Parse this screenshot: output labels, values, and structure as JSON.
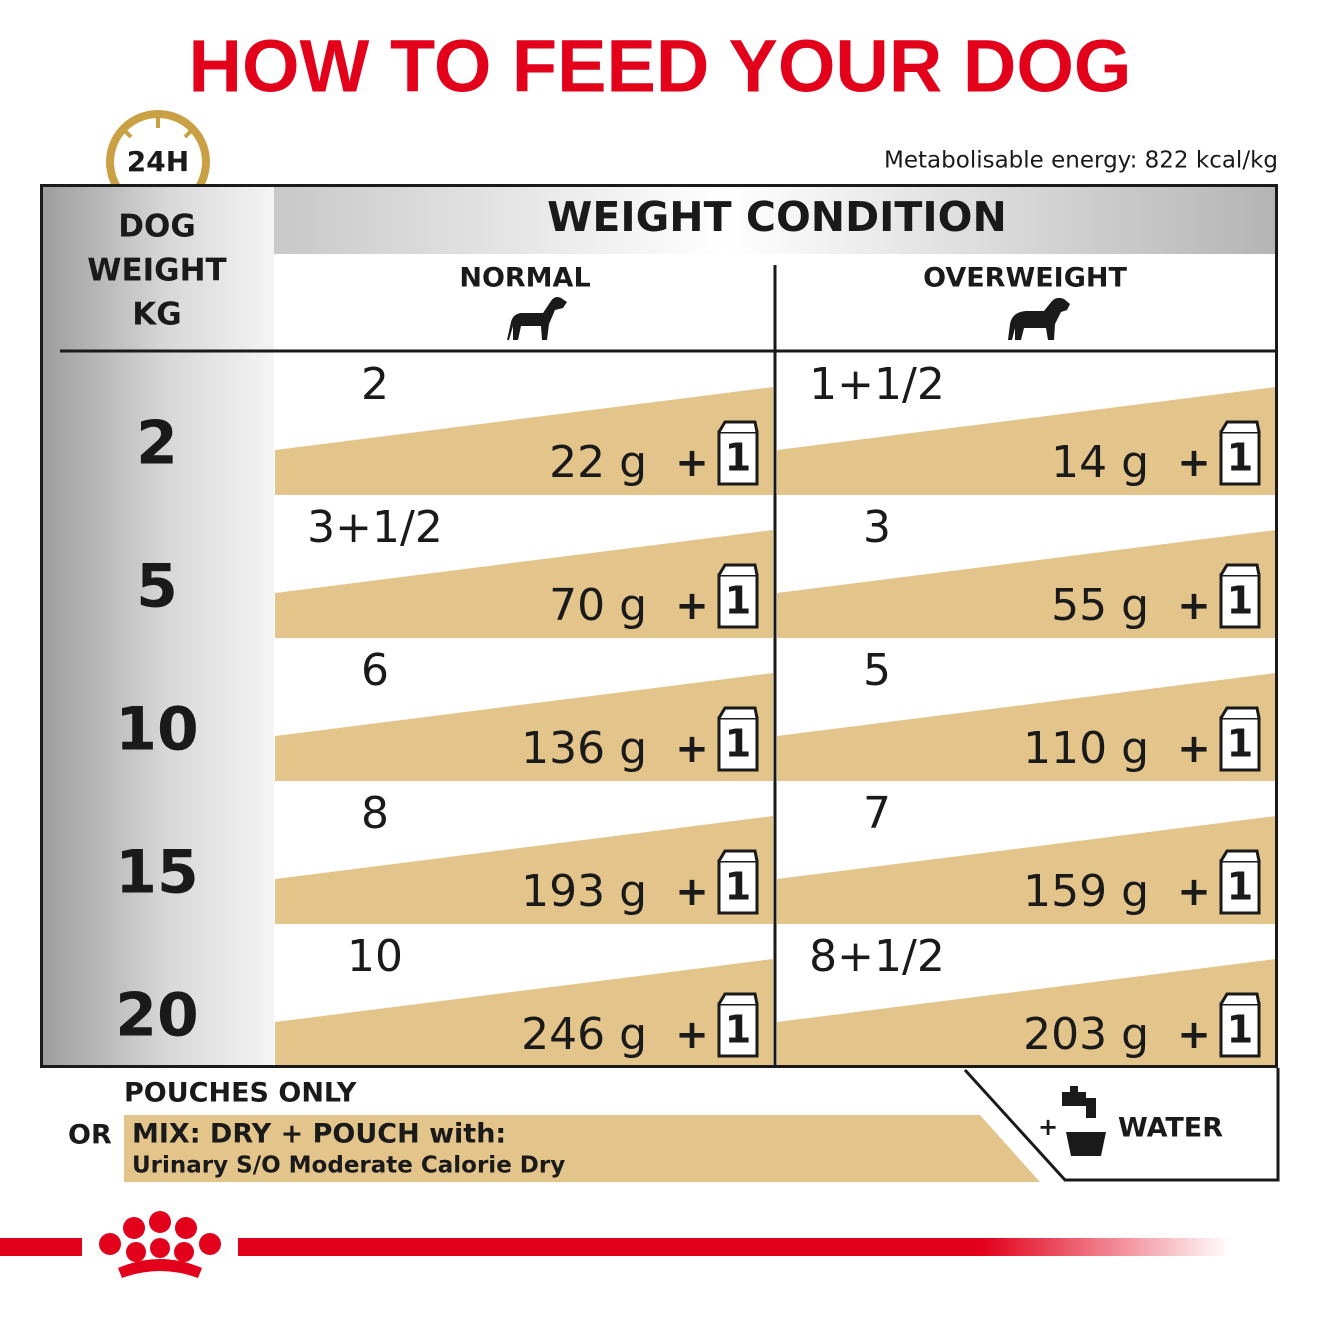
{
  "header": {
    "title": "HOW TO FEED YOUR DOG",
    "clock": "24H",
    "energy": "Metabolisable energy: 822 kcal/kg"
  },
  "table": {
    "weight_header": [
      "DOG",
      "WEIGHT",
      "KG"
    ],
    "condition": "WEIGHT CONDITION",
    "columns": [
      "NORMAL",
      "OVERWEIGHT"
    ],
    "plus": "+",
    "pouch": "1",
    "rows": [
      {
        "weight": "2",
        "normal": {
          "pouches": "2",
          "dry": "22 g"
        },
        "overweight": {
          "pouches": "1+1/2",
          "dry": "14 g"
        }
      },
      {
        "weight": "5",
        "normal": {
          "pouches": "3+1/2",
          "dry": "70 g"
        },
        "overweight": {
          "pouches": "3",
          "dry": "55 g"
        }
      },
      {
        "weight": "10",
        "normal": {
          "pouches": "6",
          "dry": "136 g"
        },
        "overweight": {
          "pouches": "5",
          "dry": "110 g"
        }
      },
      {
        "weight": "15",
        "normal": {
          "pouches": "8",
          "dry": "193 g"
        },
        "overweight": {
          "pouches": "7",
          "dry": "159 g"
        }
      },
      {
        "weight": "20",
        "normal": {
          "pouches": "10",
          "dry": "246 g"
        },
        "overweight": {
          "pouches": "8+1/2",
          "dry": "203 g"
        }
      }
    ]
  },
  "footer": {
    "pouches_only": "POUCHES ONLY",
    "or": "OR",
    "mix": "MIX: DRY + POUCH with:",
    "product": "Urinary S/O Moderate Calorie Dry",
    "water_plus": "+",
    "water": "WATER"
  }
}
